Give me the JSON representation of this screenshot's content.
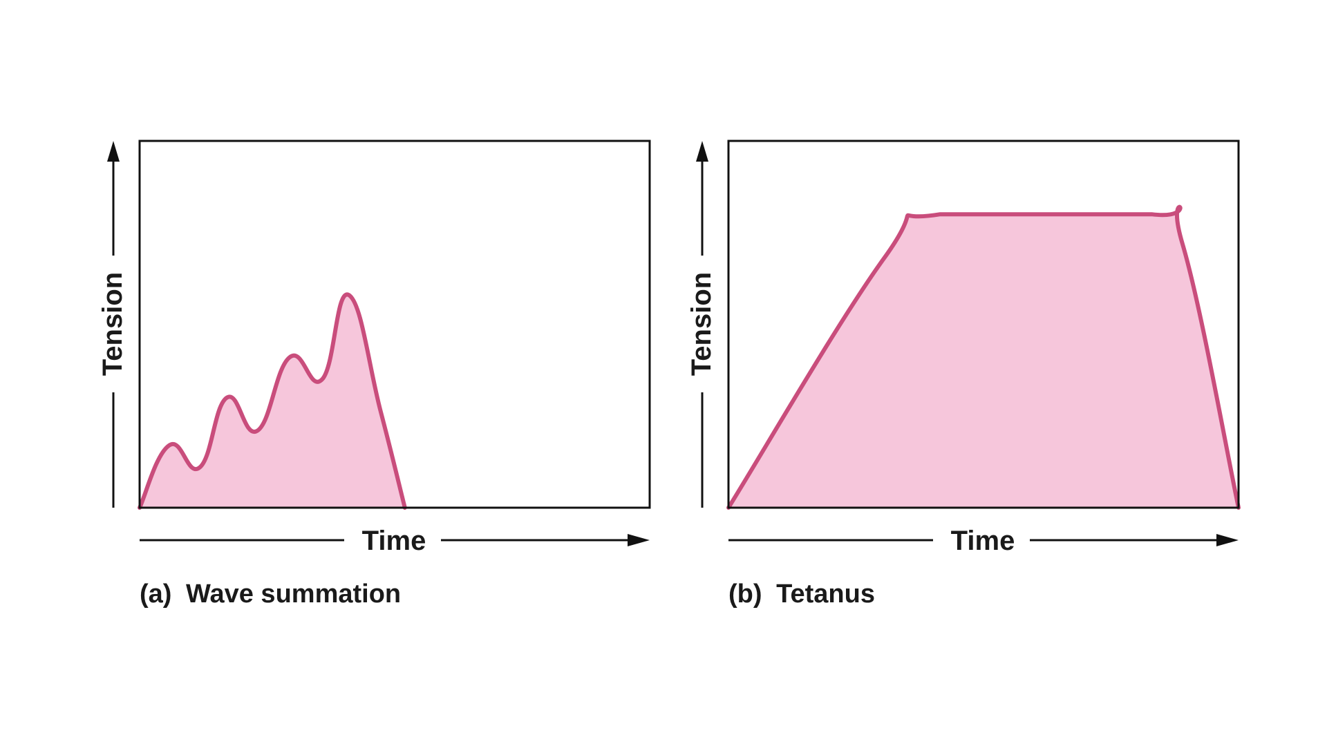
{
  "chart_data": [
    {
      "type": "area",
      "caption_letter": "(a)",
      "caption": "Wave summation",
      "xlabel": "Time",
      "ylabel": "Tension",
      "xlim": [
        0,
        100
      ],
      "ylim": [
        0,
        100
      ],
      "grid": false,
      "fill_color": "#f6c6db",
      "line_color": "#c94d7c",
      "x": [
        0,
        5.8,
        11.8,
        17.1,
        23.1,
        29.4,
        35.8,
        41.0,
        47.3,
        52.0
      ],
      "y": [
        0,
        17,
        11,
        30,
        21,
        41,
        35,
        58,
        26,
        0
      ]
    },
    {
      "type": "area",
      "caption_letter": "(b)",
      "caption": "Tetanus",
      "xlabel": "Time",
      "ylabel": "Tension",
      "xlim": [
        0,
        100
      ],
      "ylim": [
        0,
        100
      ],
      "grid": false,
      "fill_color": "#f6c6db",
      "line_color": "#c94d7c",
      "x": [
        0,
        30.5,
        41.5,
        83.0,
        89.0,
        100
      ],
      "y": [
        0,
        68,
        80,
        80,
        72,
        0
      ]
    }
  ]
}
